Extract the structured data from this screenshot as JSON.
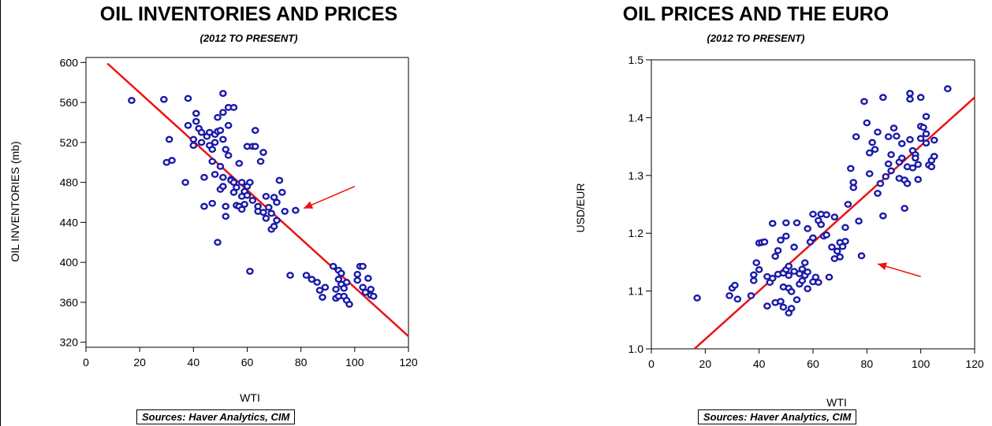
{
  "colors": {
    "points": "#1a1aa8",
    "regression": "#ee1111",
    "arrow": "#ee1111",
    "axis": "#000000"
  },
  "chart_data": [
    {
      "type": "scatter",
      "title": "OIL INVENTORIES AND PRICES",
      "subtitle": "(2012 TO PRESENT)",
      "xlabel": "WTI",
      "ylabel": "OIL INVENTORIES (mb)",
      "xlim": [
        0,
        120
      ],
      "ylim": [
        315,
        605
      ],
      "xticks": [
        "0",
        "20",
        "40",
        "60",
        "80",
        "100",
        "120"
      ],
      "yticks": [
        "320",
        "360",
        "400",
        "440",
        "480",
        "520",
        "560",
        "600"
      ],
      "grid": false,
      "source": "Sources:  Haver Analytics, CIM",
      "regression": {
        "x": [
          8,
          120
        ],
        "y": [
          599,
          326
        ]
      },
      "annotation_arrow": {
        "from": [
          100,
          476
        ],
        "to": [
          81,
          454
        ]
      },
      "points": [
        [
          17,
          562
        ],
        [
          29,
          563
        ],
        [
          30,
          500
        ],
        [
          31,
          523
        ],
        [
          32,
          502
        ],
        [
          37,
          480
        ],
        [
          38,
          537
        ],
        [
          38,
          564
        ],
        [
          40,
          517
        ],
        [
          40,
          523
        ],
        [
          41,
          549
        ],
        [
          41,
          541
        ],
        [
          42,
          534
        ],
        [
          43,
          530
        ],
        [
          43,
          520
        ],
        [
          44,
          485
        ],
        [
          44,
          456
        ],
        [
          45,
          526
        ],
        [
          46,
          530
        ],
        [
          46,
          517
        ],
        [
          47,
          513
        ],
        [
          47,
          501
        ],
        [
          47,
          459
        ],
        [
          48,
          520
        ],
        [
          48,
          528
        ],
        [
          48,
          488
        ],
        [
          49,
          545
        ],
        [
          49,
          531
        ],
        [
          49,
          420
        ],
        [
          50,
          473
        ],
        [
          50,
          496
        ],
        [
          50,
          532
        ],
        [
          51,
          569
        ],
        [
          51,
          550
        ],
        [
          51,
          523
        ],
        [
          51,
          485
        ],
        [
          51,
          476
        ],
        [
          52,
          456
        ],
        [
          52,
          446
        ],
        [
          52,
          513
        ],
        [
          53,
          507
        ],
        [
          53,
          555
        ],
        [
          53,
          537
        ],
        [
          54,
          483
        ],
        [
          54,
          482
        ],
        [
          55,
          480
        ],
        [
          55,
          555
        ],
        [
          55,
          470
        ],
        [
          56,
          475
        ],
        [
          56,
          457
        ],
        [
          57,
          456
        ],
        [
          57,
          499
        ],
        [
          58,
          480
        ],
        [
          58,
          466
        ],
        [
          58,
          453
        ],
        [
          59,
          471
        ],
        [
          59,
          458
        ],
        [
          60,
          476
        ],
        [
          60,
          467
        ],
        [
          60,
          516
        ],
        [
          61,
          480
        ],
        [
          61,
          391
        ],
        [
          62,
          462
        ],
        [
          62,
          516
        ],
        [
          63,
          532
        ],
        [
          63,
          516
        ],
        [
          64,
          456
        ],
        [
          64,
          451
        ],
        [
          65,
          501
        ],
        [
          66,
          510
        ],
        [
          66,
          450
        ],
        [
          67,
          466
        ],
        [
          67,
          444
        ],
        [
          68,
          455
        ],
        [
          69,
          433
        ],
        [
          69,
          449
        ],
        [
          70,
          465
        ],
        [
          70,
          436
        ],
        [
          71,
          442
        ],
        [
          71,
          460
        ],
        [
          72,
          482
        ],
        [
          73,
          470
        ],
        [
          74,
          451
        ],
        [
          76,
          387
        ],
        [
          78,
          452
        ],
        [
          82,
          387
        ],
        [
          84,
          383
        ],
        [
          86,
          380
        ],
        [
          87,
          372
        ],
        [
          88,
          365
        ],
        [
          89,
          375
        ],
        [
          92,
          396
        ],
        [
          93,
          373
        ],
        [
          93,
          364
        ],
        [
          94,
          392
        ],
        [
          94,
          383
        ],
        [
          94,
          366
        ],
        [
          95,
          389
        ],
        [
          95,
          378
        ],
        [
          96,
          374
        ],
        [
          96,
          366
        ],
        [
          97,
          380
        ],
        [
          97,
          362
        ],
        [
          98,
          358
        ],
        [
          101,
          388
        ],
        [
          101,
          382
        ],
        [
          102,
          396
        ],
        [
          103,
          396
        ],
        [
          103,
          375
        ],
        [
          104,
          370
        ],
        [
          105,
          384
        ],
        [
          106,
          373
        ],
        [
          106,
          367
        ],
        [
          107,
          366
        ]
      ]
    },
    {
      "type": "scatter",
      "title": "OIL PRICES AND THE EURO",
      "subtitle": "(2012 TO PRESENT)",
      "xlabel": "WTI",
      "ylabel": "USD/EUR",
      "xlim": [
        0,
        120
      ],
      "ylim": [
        1.0,
        1.5
      ],
      "xticks": [
        "0",
        "20",
        "40",
        "60",
        "80",
        "100",
        "120"
      ],
      "yticks": [
        "1.0",
        "1.1",
        "1.2",
        "1.3",
        "1.4",
        "1.5"
      ],
      "grid": false,
      "source": "Sources:  Haver Analytics, CIM",
      "regression": {
        "x": [
          16,
          120
        ],
        "y": [
          1.0,
          1.435
        ]
      },
      "annotation_arrow": {
        "from": [
          100,
          1.125
        ],
        "to": [
          84,
          1.147
        ]
      },
      "points": [
        [
          17,
          1.088
        ],
        [
          29,
          1.092
        ],
        [
          30,
          1.105
        ],
        [
          31,
          1.11
        ],
        [
          32,
          1.086
        ],
        [
          37,
          1.092
        ],
        [
          38,
          1.118
        ],
        [
          38,
          1.128
        ],
        [
          39,
          1.149
        ],
        [
          40,
          1.183
        ],
        [
          40,
          1.137
        ],
        [
          41,
          1.184
        ],
        [
          42,
          1.185
        ],
        [
          43,
          1.074
        ],
        [
          43,
          1.125
        ],
        [
          44,
          1.115
        ],
        [
          45,
          1.217
        ],
        [
          45,
          1.122
        ],
        [
          46,
          1.08
        ],
        [
          46,
          1.16
        ],
        [
          47,
          1.17
        ],
        [
          47,
          1.129
        ],
        [
          48,
          1.082
        ],
        [
          48,
          1.188
        ],
        [
          49,
          1.131
        ],
        [
          49,
          1.107
        ],
        [
          49,
          1.072
        ],
        [
          50,
          1.137
        ],
        [
          50,
          1.218
        ],
        [
          50,
          1.195
        ],
        [
          51,
          1.062
        ],
        [
          51,
          1.105
        ],
        [
          51,
          1.127
        ],
        [
          51,
          1.143
        ],
        [
          52,
          1.099
        ],
        [
          52,
          1.07
        ],
        [
          53,
          1.176
        ],
        [
          53,
          1.134
        ],
        [
          54,
          1.085
        ],
        [
          54,
          1.218
        ],
        [
          55,
          1.112
        ],
        [
          55,
          1.13
        ],
        [
          56,
          1.118
        ],
        [
          56,
          1.138
        ],
        [
          57,
          1.149
        ],
        [
          57,
          1.127
        ],
        [
          58,
          1.104
        ],
        [
          58,
          1.133
        ],
        [
          58,
          1.208
        ],
        [
          59,
          1.185
        ],
        [
          60,
          1.233
        ],
        [
          60,
          1.192
        ],
        [
          60,
          1.116
        ],
        [
          61,
          1.124
        ],
        [
          62,
          1.115
        ],
        [
          62,
          1.222
        ],
        [
          63,
          1.233
        ],
        [
          63,
          1.215
        ],
        [
          64,
          1.195
        ],
        [
          65,
          1.232
        ],
        [
          65,
          1.197
        ],
        [
          66,
          1.124
        ],
        [
          67,
          1.176
        ],
        [
          68,
          1.156
        ],
        [
          68,
          1.228
        ],
        [
          69,
          1.169
        ],
        [
          70,
          1.184
        ],
        [
          70,
          1.159
        ],
        [
          71,
          1.177
        ],
        [
          72,
          1.186
        ],
        [
          72,
          1.21
        ],
        [
          73,
          1.25
        ],
        [
          74,
          1.312
        ],
        [
          75,
          1.288
        ],
        [
          75,
          1.279
        ],
        [
          76,
          1.367
        ],
        [
          77,
          1.221
        ],
        [
          78,
          1.161
        ],
        [
          79,
          1.428
        ],
        [
          80,
          1.391
        ],
        [
          81,
          1.303
        ],
        [
          81,
          1.339
        ],
        [
          82,
          1.357
        ],
        [
          83,
          1.345
        ],
        [
          84,
          1.375
        ],
        [
          84,
          1.269
        ],
        [
          85,
          1.286
        ],
        [
          86,
          1.435
        ],
        [
          86,
          1.23
        ],
        [
          87,
          1.298
        ],
        [
          88,
          1.367
        ],
        [
          88,
          1.32
        ],
        [
          89,
          1.336
        ],
        [
          89,
          1.308
        ],
        [
          90,
          1.382
        ],
        [
          91,
          1.368
        ],
        [
          92,
          1.295
        ],
        [
          92,
          1.323
        ],
        [
          93,
          1.355
        ],
        [
          93,
          1.33
        ],
        [
          94,
          1.292
        ],
        [
          94,
          1.243
        ],
        [
          95,
          1.286
        ],
        [
          95,
          1.315
        ],
        [
          96,
          1.442
        ],
        [
          96,
          1.432
        ],
        [
          96,
          1.362
        ],
        [
          97,
          1.343
        ],
        [
          97,
          1.313
        ],
        [
          98,
          1.336
        ],
        [
          98,
          1.33
        ],
        [
          99,
          1.293
        ],
        [
          99,
          1.319
        ],
        [
          100,
          1.435
        ],
        [
          100,
          1.385
        ],
        [
          100,
          1.364
        ],
        [
          101,
          1.383
        ],
        [
          102,
          1.372
        ],
        [
          102,
          1.356
        ],
        [
          102,
          1.402
        ],
        [
          103,
          1.318
        ],
        [
          104,
          1.315
        ],
        [
          104,
          1.326
        ],
        [
          105,
          1.333
        ],
        [
          105,
          1.361
        ],
        [
          110,
          1.45
        ]
      ]
    }
  ]
}
